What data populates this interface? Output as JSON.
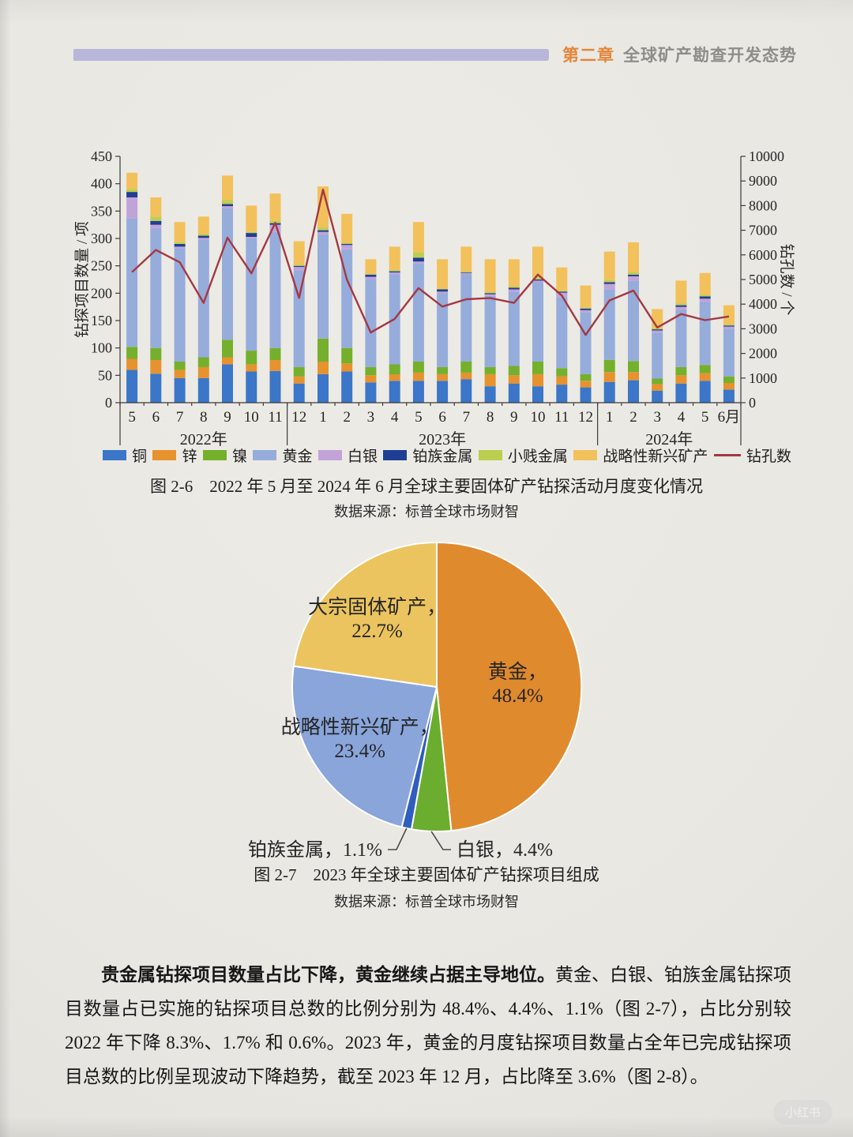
{
  "header": {
    "chapter": "第二章",
    "title": "全球矿产勘查开发态势"
  },
  "figure_2_6": {
    "caption": "图 2-6　2022 年 5 月至 2024 年 6 月全球主要固体矿产钻探活动月度变化情况",
    "source": "数据来源：标普全球市场财智"
  },
  "figure_2_7": {
    "caption": "图 2-7　2023 年全球主要固体矿产钻探项目组成",
    "source": "数据来源：标普全球市场财智"
  },
  "body": {
    "lead": "贵金属钻探项目数量占比下降，黄金继续占据主导地位。",
    "text": "黄金、白银、铂族金属钻探项目数量占已实施的钻探项目总数的比例分别为 48.4%、4.4%、1.1%（图 2-7），占比分别较 2022 年下降 8.3%、1.7% 和 0.6%。2023 年，黄金的月度钻探项目数量占全年已完成钻探项目总数的比例呈现波动下降趋势，截至 2023 年 12 月，占比降至 3.6%（图 2-8）。"
  },
  "watermark": "小红书",
  "chart_data": [
    {
      "type": "bar",
      "stacked": true,
      "title": "2022 年 5 月至 2024 年 6 月全球主要固体矿产钻探活动月度变化情况",
      "ylabel_left": "钻探项目数量 / 项",
      "ylabel_right": "钻孔数 / 个",
      "ylim_left": [
        0,
        450
      ],
      "ytick_step_left": 50,
      "ylim_right": [
        0,
        10000
      ],
      "ytick_step_right": 1000,
      "grid": false,
      "legend_position": "bottom",
      "categories": [
        "5",
        "6",
        "7",
        "8",
        "9",
        "10",
        "11",
        "12",
        "1",
        "2",
        "3",
        "4",
        "5",
        "6",
        "7",
        "8",
        "9",
        "10",
        "11",
        "12",
        "1",
        "2",
        "3",
        "4",
        "5",
        "6月"
      ],
      "year_groups": [
        {
          "label": "2022年",
          "from": 0,
          "to": 6
        },
        {
          "label": "2023年",
          "from": 7,
          "to": 19
        },
        {
          "label": "2024年",
          "from": 20,
          "to": 25
        }
      ],
      "series": [
        {
          "name": "铜",
          "color": "#3b76c8",
          "values": [
            60,
            53,
            45,
            45,
            70,
            57,
            58,
            35,
            52,
            57,
            37,
            40,
            40,
            40,
            43,
            30,
            35,
            30,
            33,
            28,
            38,
            41,
            22,
            35,
            40,
            24
          ]
        },
        {
          "name": "锌",
          "color": "#e6922e",
          "values": [
            20,
            25,
            15,
            20,
            13,
            13,
            20,
            13,
            23,
            15,
            13,
            12,
            15,
            12,
            12,
            22,
            15,
            22,
            15,
            12,
            18,
            15,
            12,
            15,
            14,
            12
          ]
        },
        {
          "name": "镍",
          "color": "#74b02c",
          "values": [
            22,
            22,
            15,
            18,
            32,
            25,
            22,
            17,
            42,
            28,
            15,
            18,
            20,
            13,
            20,
            13,
            17,
            23,
            15,
            12,
            22,
            20,
            10,
            15,
            15,
            12
          ]
        },
        {
          "name": "黄金",
          "color": "#96acdb",
          "values": [
            235,
            218,
            207,
            215,
            240,
            205,
            212,
            177,
            190,
            180,
            160,
            165,
            180,
            135,
            160,
            130,
            135,
            145,
            130,
            113,
            129,
            147,
            84,
            105,
            115,
            87
          ]
        },
        {
          "name": "白银",
          "color": "#c2a3d8",
          "values": [
            38,
            7,
            3,
            3,
            4,
            3,
            13,
            6,
            5,
            8,
            5,
            3,
            3,
            3,
            2,
            3,
            5,
            3,
            8,
            4,
            10,
            8,
            4,
            5,
            6,
            4
          ]
        },
        {
          "name": "铂族金属",
          "color": "#1e3f94",
          "values": [
            10,
            7,
            5,
            4,
            4,
            7,
            3,
            2,
            3,
            2,
            4,
            2,
            7,
            4,
            1,
            2,
            3,
            2,
            2,
            3,
            3,
            3,
            2,
            3,
            4,
            2
          ]
        },
        {
          "name": "小贱金属",
          "color": "#bcce4f",
          "values": [
            5,
            8,
            3,
            3,
            7,
            2,
            4,
            2,
            5,
            2,
            1,
            2,
            10,
            1,
            2,
            2,
            2,
            3,
            2,
            2,
            4,
            4,
            2,
            3,
            3,
            2
          ]
        },
        {
          "name": "战略性新兴矿产",
          "color": "#f2c15b",
          "values": [
            30,
            35,
            37,
            32,
            45,
            48,
            50,
            43,
            75,
            53,
            27,
            43,
            55,
            54,
            45,
            60,
            50,
            57,
            42,
            40,
            52,
            55,
            35,
            42,
            40,
            35
          ]
        }
      ],
      "line_series": {
        "name": "钻孔数",
        "color": "#a33843",
        "axis": "right",
        "values": [
          5300,
          6200,
          5700,
          4050,
          6700,
          5250,
          7300,
          4250,
          8650,
          5000,
          2850,
          3400,
          4650,
          3900,
          4200,
          4250,
          4050,
          5200,
          4350,
          2750,
          4150,
          4550,
          3050,
          3600,
          3350,
          3500
        ]
      }
    },
    {
      "type": "pie",
      "title": "2023 年全球主要固体矿产钻探项目组成",
      "start_angle_deg": 0,
      "direction": "clockwise",
      "slices": [
        {
          "label": "黄金",
          "value": 48.4,
          "color": "#e08a2e",
          "label_style": "inside"
        },
        {
          "label": "白银",
          "value": 4.4,
          "color": "#6bad2f",
          "label_style": "leader"
        },
        {
          "label": "铂族金属",
          "value": 1.1,
          "color": "#2f5ebe",
          "label_style": "leader"
        },
        {
          "label": "战略性新兴矿产",
          "value": 23.4,
          "color": "#89a5da",
          "label_style": "inside"
        },
        {
          "label": "大宗固体矿产",
          "value": 22.7,
          "color": "#ebc45f",
          "label_style": "inside"
        }
      ]
    }
  ]
}
